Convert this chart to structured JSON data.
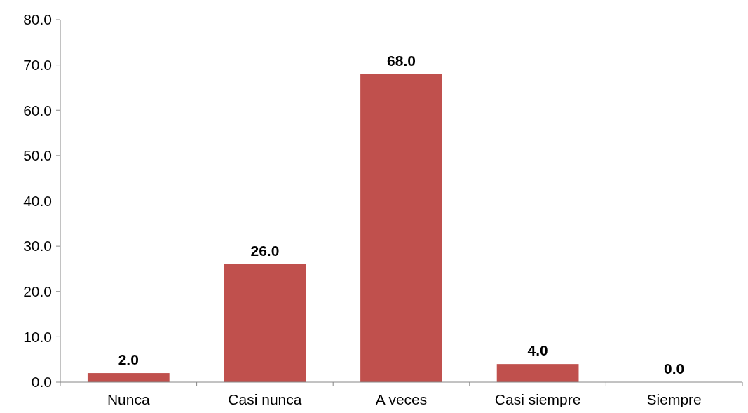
{
  "chart_data": {
    "type": "bar",
    "categories": [
      "Nunca",
      "Casi nunca",
      "A veces",
      "Casi siempre",
      "Siempre"
    ],
    "values": [
      2,
      26,
      68,
      4,
      0
    ],
    "value_labels": [
      "2.0",
      "26.0",
      "68.0",
      "4.0",
      "0.0"
    ],
    "color": "#c0504d",
    "ylim": [
      0,
      80
    ],
    "yticks": [
      {
        "value": 0,
        "label": "0.0"
      },
      {
        "value": 10,
        "label": "10.0"
      },
      {
        "value": 20,
        "label": "20.0"
      },
      {
        "value": 30,
        "label": "30.0"
      },
      {
        "value": 40,
        "label": "40.0"
      },
      {
        "value": 50,
        "label": "50.0"
      },
      {
        "value": 60,
        "label": "60.0"
      },
      {
        "value": 70,
        "label": "70.0"
      },
      {
        "value": 80,
        "label": "80.0"
      }
    ],
    "grid": false
  }
}
